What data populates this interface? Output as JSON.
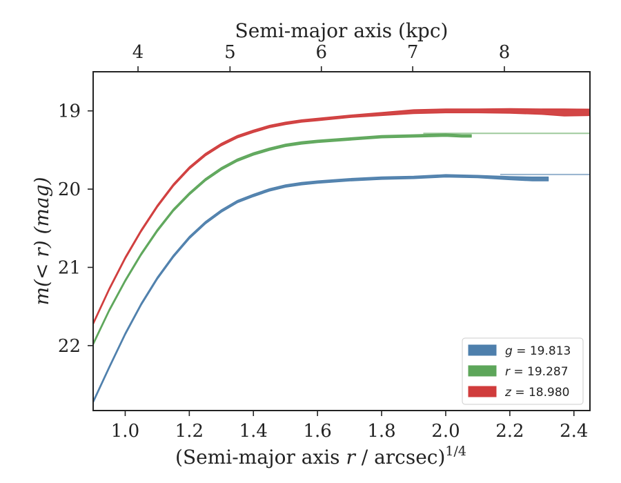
{
  "chart_data": {
    "type": "line",
    "xlabel": "(Semi-major axis r / arcsec)",
    "xlabel_sup": "1/4",
    "ylabel": "m(< r) (mag)",
    "top_xlabel": "Semi-major axis (kpc)",
    "xlim": [
      0.9,
      2.45
    ],
    "ylim": [
      22.83,
      18.5
    ],
    "y_inverted": true,
    "x_ticks": [
      1.0,
      1.2,
      1.4,
      1.6,
      1.8,
      2.0,
      2.2,
      2.4
    ],
    "x_tick_labels": [
      "1.0",
      "1.2",
      "1.4",
      "1.6",
      "1.8",
      "2.0",
      "2.2",
      "2.4"
    ],
    "y_ticks": [
      19,
      20,
      21,
      22
    ],
    "y_tick_labels": [
      "19",
      "20",
      "21",
      "22"
    ],
    "top_ticks_kpc": [
      4,
      5,
      6,
      7,
      8
    ],
    "top_tick_labels": [
      "4",
      "5",
      "6",
      "7",
      "8"
    ],
    "top_tick_positions_x": [
      1.04,
      1.327,
      1.612,
      1.897,
      2.183
    ],
    "legend_position": "lower-right",
    "series": [
      {
        "name": "g = 19.813",
        "legend_sym": "g",
        "legend_val": "19.813",
        "color": "#4e7fac",
        "asymptote": 19.813,
        "x": [
          0.9,
          0.95,
          1.0,
          1.05,
          1.1,
          1.15,
          1.2,
          1.25,
          1.3,
          1.35,
          1.4,
          1.45,
          1.5,
          1.55,
          1.6,
          1.7,
          1.8,
          1.9,
          2.0,
          2.1,
          2.2,
          2.27,
          2.32
        ],
        "y": [
          22.72,
          22.28,
          21.85,
          21.47,
          21.14,
          20.86,
          20.62,
          20.43,
          20.28,
          20.16,
          20.08,
          20.01,
          19.96,
          19.93,
          19.91,
          19.88,
          19.86,
          19.85,
          19.83,
          19.84,
          19.86,
          19.87,
          19.87
        ],
        "width_mag": [
          0.02,
          0.02,
          0.02,
          0.02,
          0.02,
          0.02,
          0.02,
          0.02,
          0.02,
          0.02,
          0.02,
          0.02,
          0.02,
          0.02,
          0.02,
          0.02,
          0.02,
          0.02,
          0.03,
          0.03,
          0.04,
          0.05,
          0.05
        ]
      },
      {
        "name": "r = 19.287",
        "legend_sym": "r",
        "legend_val": "19.287",
        "color": "#5da65a",
        "asymptote": 19.287,
        "x": [
          0.9,
          0.95,
          1.0,
          1.05,
          1.1,
          1.15,
          1.2,
          1.25,
          1.3,
          1.35,
          1.4,
          1.45,
          1.5,
          1.55,
          1.6,
          1.7,
          1.8,
          1.9,
          2.0,
          2.05,
          2.08
        ],
        "y": [
          21.98,
          21.55,
          21.17,
          20.83,
          20.53,
          20.27,
          20.06,
          19.88,
          19.74,
          19.63,
          19.55,
          19.49,
          19.44,
          19.41,
          19.39,
          19.36,
          19.33,
          19.32,
          19.31,
          19.32,
          19.32
        ],
        "width_mag": [
          0.02,
          0.02,
          0.02,
          0.02,
          0.02,
          0.02,
          0.02,
          0.02,
          0.02,
          0.02,
          0.02,
          0.02,
          0.02,
          0.02,
          0.02,
          0.02,
          0.02,
          0.02,
          0.03,
          0.03,
          0.03
        ]
      },
      {
        "name": "z = 18.980",
        "legend_sym": "z",
        "legend_val": "18.980",
        "color": "#d03c3c",
        "asymptote": 18.98,
        "x": [
          0.9,
          0.95,
          1.0,
          1.05,
          1.1,
          1.15,
          1.2,
          1.25,
          1.3,
          1.35,
          1.4,
          1.45,
          1.5,
          1.55,
          1.6,
          1.7,
          1.8,
          1.9,
          2.0,
          2.1,
          2.2,
          2.3,
          2.37,
          2.45
        ],
        "y": [
          21.72,
          21.28,
          20.88,
          20.53,
          20.22,
          19.95,
          19.73,
          19.56,
          19.43,
          19.33,
          19.26,
          19.2,
          19.16,
          19.13,
          19.11,
          19.07,
          19.04,
          19.01,
          19.0,
          19.0,
          19.0,
          19.01,
          19.02,
          19.02
        ],
        "width_mag": [
          0.03,
          0.03,
          0.03,
          0.03,
          0.03,
          0.03,
          0.03,
          0.03,
          0.03,
          0.03,
          0.03,
          0.03,
          0.03,
          0.03,
          0.03,
          0.03,
          0.04,
          0.05,
          0.05,
          0.05,
          0.06,
          0.07,
          0.09,
          0.08
        ]
      }
    ]
  }
}
